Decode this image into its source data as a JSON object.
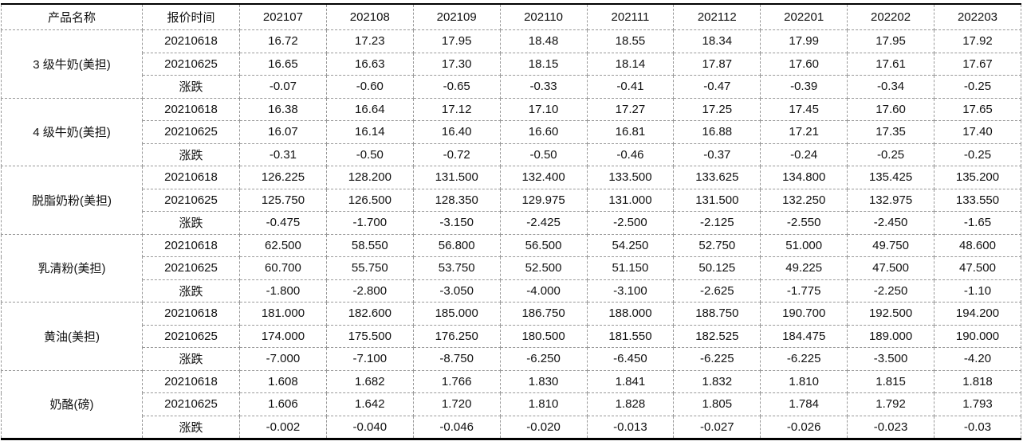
{
  "table": {
    "header": [
      "产品名称",
      "报价时间",
      "202107",
      "202108",
      "202109",
      "202110",
      "202111",
      "202112",
      "202201",
      "202202",
      "202203"
    ],
    "groups": [
      {
        "name": "3 级牛奶(美担)",
        "rows": [
          {
            "label": "20210618",
            "values": [
              "16.72",
              "17.23",
              "17.95",
              "18.48",
              "18.55",
              "18.34",
              "17.99",
              "17.95",
              "17.92"
            ]
          },
          {
            "label": "20210625",
            "values": [
              "16.65",
              "16.63",
              "17.30",
              "18.15",
              "18.14",
              "17.87",
              "17.60",
              "17.61",
              "17.67"
            ]
          },
          {
            "label": "涨跌",
            "values": [
              "-0.07",
              "-0.60",
              "-0.65",
              "-0.33",
              "-0.41",
              "-0.47",
              "-0.39",
              "-0.34",
              "-0.25"
            ]
          }
        ]
      },
      {
        "name": "4 级牛奶(美担)",
        "rows": [
          {
            "label": "20210618",
            "values": [
              "16.38",
              "16.64",
              "17.12",
              "17.10",
              "17.27",
              "17.25",
              "17.45",
              "17.60",
              "17.65"
            ]
          },
          {
            "label": "20210625",
            "values": [
              "16.07",
              "16.14",
              "16.40",
              "16.60",
              "16.81",
              "16.88",
              "17.21",
              "17.35",
              "17.40"
            ]
          },
          {
            "label": "涨跌",
            "values": [
              "-0.31",
              "-0.50",
              "-0.72",
              "-0.50",
              "-0.46",
              "-0.37",
              "-0.24",
              "-0.25",
              "-0.25"
            ]
          }
        ]
      },
      {
        "name": "脱脂奶粉(美担)",
        "rows": [
          {
            "label": "20210618",
            "values": [
              "126.225",
              "128.200",
              "131.500",
              "132.400",
              "133.500",
              "133.625",
              "134.800",
              "135.425",
              "135.200"
            ]
          },
          {
            "label": "20210625",
            "values": [
              "125.750",
              "126.500",
              "128.350",
              "129.975",
              "131.000",
              "131.500",
              "132.250",
              "132.975",
              "133.550"
            ]
          },
          {
            "label": "涨跌",
            "values": [
              "-0.475",
              "-1.700",
              "-3.150",
              "-2.425",
              "-2.500",
              "-2.125",
              "-2.550",
              "-2.450",
              "-1.65"
            ]
          }
        ]
      },
      {
        "name": "乳清粉(美担)",
        "rows": [
          {
            "label": "20210618",
            "values": [
              "62.500",
              "58.550",
              "56.800",
              "56.500",
              "54.250",
              "52.750",
              "51.000",
              "49.750",
              "48.600"
            ]
          },
          {
            "label": "20210625",
            "values": [
              "60.700",
              "55.750",
              "53.750",
              "52.500",
              "51.150",
              "50.125",
              "49.225",
              "47.500",
              "47.500"
            ]
          },
          {
            "label": "涨跌",
            "values": [
              "-1.800",
              "-2.800",
              "-3.050",
              "-4.000",
              "-3.100",
              "-2.625",
              "-1.775",
              "-2.250",
              "-1.10"
            ]
          }
        ]
      },
      {
        "name": "黄油(美担)",
        "rows": [
          {
            "label": "20210618",
            "values": [
              "181.000",
              "182.600",
              "185.000",
              "186.750",
              "188.000",
              "188.750",
              "190.700",
              "192.500",
              "194.200"
            ]
          },
          {
            "label": "20210625",
            "values": [
              "174.000",
              "175.500",
              "176.250",
              "180.500",
              "181.550",
              "182.525",
              "184.475",
              "189.000",
              "190.000"
            ]
          },
          {
            "label": "涨跌",
            "values": [
              "-7.000",
              "-7.100",
              "-8.750",
              "-6.250",
              "-6.450",
              "-6.225",
              "-6.225",
              "-3.500",
              "-4.20"
            ]
          }
        ]
      },
      {
        "name": "奶酪(磅)",
        "rows": [
          {
            "label": "20210618",
            "values": [
              "1.608",
              "1.682",
              "1.766",
              "1.830",
              "1.841",
              "1.832",
              "1.810",
              "1.815",
              "1.818"
            ]
          },
          {
            "label": "20210625",
            "values": [
              "1.606",
              "1.642",
              "1.720",
              "1.810",
              "1.828",
              "1.805",
              "1.784",
              "1.792",
              "1.793"
            ]
          },
          {
            "label": "涨跌",
            "values": [
              "-0.002",
              "-0.040",
              "-0.046",
              "-0.020",
              "-0.013",
              "-0.027",
              "-0.026",
              "-0.023",
              "-0.03"
            ]
          }
        ]
      }
    ]
  }
}
